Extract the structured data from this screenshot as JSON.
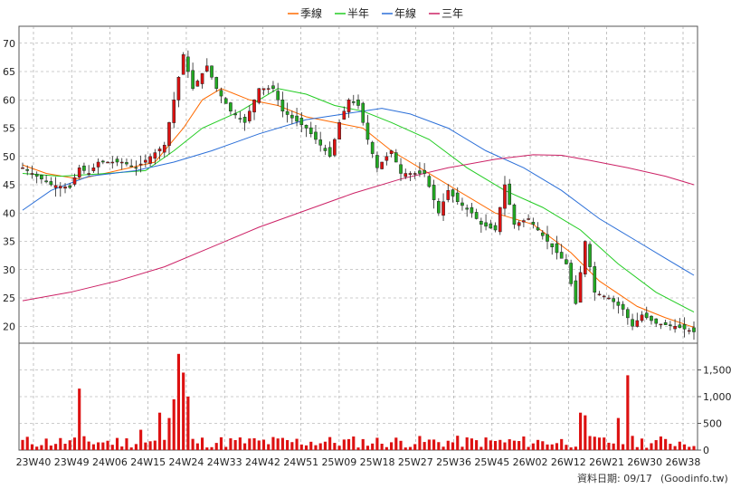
{
  "chart_data": {
    "type": "candlestick",
    "legend": [
      {
        "name": "季線",
        "color": "#ff6a00"
      },
      {
        "name": "半年",
        "color": "#22cc22"
      },
      {
        "name": "年線",
        "color": "#2b6fd8"
      },
      {
        "name": "三年",
        "color": "#cc2266"
      }
    ],
    "price_axis": {
      "ylim": [
        17,
        73
      ],
      "ticks": [
        20,
        25,
        30,
        35,
        40,
        45,
        50,
        55,
        60,
        65,
        70
      ],
      "grid": true
    },
    "volume_axis": {
      "ylim": [
        0,
        2000
      ],
      "ticks": [
        0,
        500,
        1000,
        1500
      ],
      "tick_labels": [
        "0",
        "500",
        "1,000",
        "1,500"
      ]
    },
    "x_labels": [
      "23W40",
      "23W49",
      "24W06",
      "24W15",
      "24W24",
      "24W33",
      "24W42",
      "24W51",
      "25W09",
      "25W18",
      "25W27",
      "25W36",
      "25W45",
      "26W02",
      "26W12",
      "26W21",
      "26W30",
      "26W38"
    ],
    "anchors": [
      {
        "x": 0,
        "v": 48
      },
      {
        "x": 6,
        "v": 45
      },
      {
        "x": 10,
        "v": 44.5
      },
      {
        "x": 12,
        "v": 48
      },
      {
        "x": 14,
        "v": 47
      },
      {
        "x": 16,
        "v": 49
      },
      {
        "x": 21,
        "v": 49
      },
      {
        "x": 24,
        "v": 48
      },
      {
        "x": 30,
        "v": 52
      },
      {
        "x": 32,
        "v": 60
      },
      {
        "x": 34,
        "v": 68
      },
      {
        "x": 36,
        "v": 62
      },
      {
        "x": 39,
        "v": 66
      },
      {
        "x": 41,
        "v": 62
      },
      {
        "x": 44,
        "v": 58
      },
      {
        "x": 47,
        "v": 56
      },
      {
        "x": 50,
        "v": 62
      },
      {
        "x": 53,
        "v": 62
      },
      {
        "x": 55,
        "v": 58
      },
      {
        "x": 60,
        "v": 55
      },
      {
        "x": 63,
        "v": 52
      },
      {
        "x": 65,
        "v": 50
      },
      {
        "x": 67,
        "v": 56
      },
      {
        "x": 69,
        "v": 60
      },
      {
        "x": 71,
        "v": 59
      },
      {
        "x": 73,
        "v": 53
      },
      {
        "x": 75,
        "v": 48
      },
      {
        "x": 78,
        "v": 51
      },
      {
        "x": 80,
        "v": 47
      },
      {
        "x": 85,
        "v": 47
      },
      {
        "x": 88,
        "v": 40
      },
      {
        "x": 90,
        "v": 44
      },
      {
        "x": 92,
        "v": 42
      },
      {
        "x": 95,
        "v": 40
      },
      {
        "x": 97,
        "v": 38
      },
      {
        "x": 100,
        "v": 37
      },
      {
        "x": 102,
        "v": 45
      },
      {
        "x": 104,
        "v": 38
      },
      {
        "x": 107,
        "v": 39
      },
      {
        "x": 109,
        "v": 37
      },
      {
        "x": 112,
        "v": 34
      },
      {
        "x": 115,
        "v": 31
      },
      {
        "x": 117,
        "v": 24
      },
      {
        "x": 119,
        "v": 35
      },
      {
        "x": 121,
        "v": 26
      },
      {
        "x": 124,
        "v": 25
      },
      {
        "x": 127,
        "v": 23
      },
      {
        "x": 129,
        "v": 20
      },
      {
        "x": 131,
        "v": 22
      },
      {
        "x": 134,
        "v": 20.5
      },
      {
        "x": 138,
        "v": 20
      },
      {
        "x": 142,
        "v": 19
      }
    ],
    "volume_spikes": [
      {
        "x": 12,
        "v": 1150
      },
      {
        "x": 32,
        "v": 950
      },
      {
        "x": 33,
        "v": 1800
      },
      {
        "x": 34,
        "v": 1450
      },
      {
        "x": 35,
        "v": 1000
      },
      {
        "x": 31,
        "v": 600
      },
      {
        "x": 118,
        "v": 700
      },
      {
        "x": 119,
        "v": 650
      },
      {
        "x": 128,
        "v": 1400
      },
      {
        "x": 126,
        "v": 600
      },
      {
        "x": 29,
        "v": 700
      },
      {
        "x": 25,
        "v": 380
      }
    ],
    "ma_quarter": [
      {
        "x": 0,
        "v": 48.5
      },
      {
        "x": 5,
        "v": 47
      },
      {
        "x": 12,
        "v": 46
      },
      {
        "x": 20,
        "v": 47.5
      },
      {
        "x": 28,
        "v": 49
      },
      {
        "x": 34,
        "v": 55
      },
      {
        "x": 38,
        "v": 60
      },
      {
        "x": 42,
        "v": 62
      },
      {
        "x": 48,
        "v": 60
      },
      {
        "x": 54,
        "v": 59
      },
      {
        "x": 60,
        "v": 57
      },
      {
        "x": 66,
        "v": 56
      },
      {
        "x": 72,
        "v": 55
      },
      {
        "x": 78,
        "v": 51
      },
      {
        "x": 84,
        "v": 48
      },
      {
        "x": 92,
        "v": 44
      },
      {
        "x": 100,
        "v": 40
      },
      {
        "x": 108,
        "v": 38
      },
      {
        "x": 116,
        "v": 33
      },
      {
        "x": 122,
        "v": 28
      },
      {
        "x": 130,
        "v": 23.5
      },
      {
        "x": 136,
        "v": 21.5
      },
      {
        "x": 142,
        "v": 19.8
      }
    ],
    "ma_half": [
      {
        "x": 0,
        "v": 47
      },
      {
        "x": 8,
        "v": 46.5
      },
      {
        "x": 18,
        "v": 47
      },
      {
        "x": 26,
        "v": 47.5
      },
      {
        "x": 32,
        "v": 51
      },
      {
        "x": 38,
        "v": 55
      },
      {
        "x": 46,
        "v": 58
      },
      {
        "x": 54,
        "v": 62
      },
      {
        "x": 60,
        "v": 61
      },
      {
        "x": 66,
        "v": 59
      },
      {
        "x": 72,
        "v": 58
      },
      {
        "x": 78,
        "v": 56
      },
      {
        "x": 86,
        "v": 53
      },
      {
        "x": 94,
        "v": 48
      },
      {
        "x": 102,
        "v": 44
      },
      {
        "x": 110,
        "v": 41
      },
      {
        "x": 118,
        "v": 37
      },
      {
        "x": 126,
        "v": 31
      },
      {
        "x": 134,
        "v": 26
      },
      {
        "x": 142,
        "v": 22.5
      }
    ],
    "ma_year": [
      {
        "x": 0,
        "v": 40.5
      },
      {
        "x": 6,
        "v": 44
      },
      {
        "x": 14,
        "v": 46.5
      },
      {
        "x": 24,
        "v": 47.5
      },
      {
        "x": 32,
        "v": 49
      },
      {
        "x": 40,
        "v": 51
      },
      {
        "x": 50,
        "v": 54
      },
      {
        "x": 60,
        "v": 56.5
      },
      {
        "x": 68,
        "v": 57.5
      },
      {
        "x": 76,
        "v": 58.5
      },
      {
        "x": 82,
        "v": 57.5
      },
      {
        "x": 90,
        "v": 55
      },
      {
        "x": 98,
        "v": 51
      },
      {
        "x": 106,
        "v": 48
      },
      {
        "x": 114,
        "v": 44
      },
      {
        "x": 122,
        "v": 39
      },
      {
        "x": 130,
        "v": 35
      },
      {
        "x": 136,
        "v": 32
      },
      {
        "x": 142,
        "v": 29
      }
    ],
    "ma_3year": [
      {
        "x": 0,
        "v": 24.5
      },
      {
        "x": 10,
        "v": 26
      },
      {
        "x": 20,
        "v": 28
      },
      {
        "x": 30,
        "v": 30.5
      },
      {
        "x": 40,
        "v": 34
      },
      {
        "x": 50,
        "v": 37.5
      },
      {
        "x": 60,
        "v": 40.5
      },
      {
        "x": 70,
        "v": 43.5
      },
      {
        "x": 80,
        "v": 46
      },
      {
        "x": 90,
        "v": 48
      },
      {
        "x": 100,
        "v": 49.5
      },
      {
        "x": 108,
        "v": 50.3
      },
      {
        "x": 114,
        "v": 50.2
      },
      {
        "x": 120,
        "v": 49.3
      },
      {
        "x": 128,
        "v": 48
      },
      {
        "x": 136,
        "v": 46.5
      },
      {
        "x": 142,
        "v": 45
      }
    ],
    "bar_count": 143
  },
  "footer": {
    "date_label": "資料日期: 09/17",
    "source": "(Goodinfo.tw)"
  }
}
